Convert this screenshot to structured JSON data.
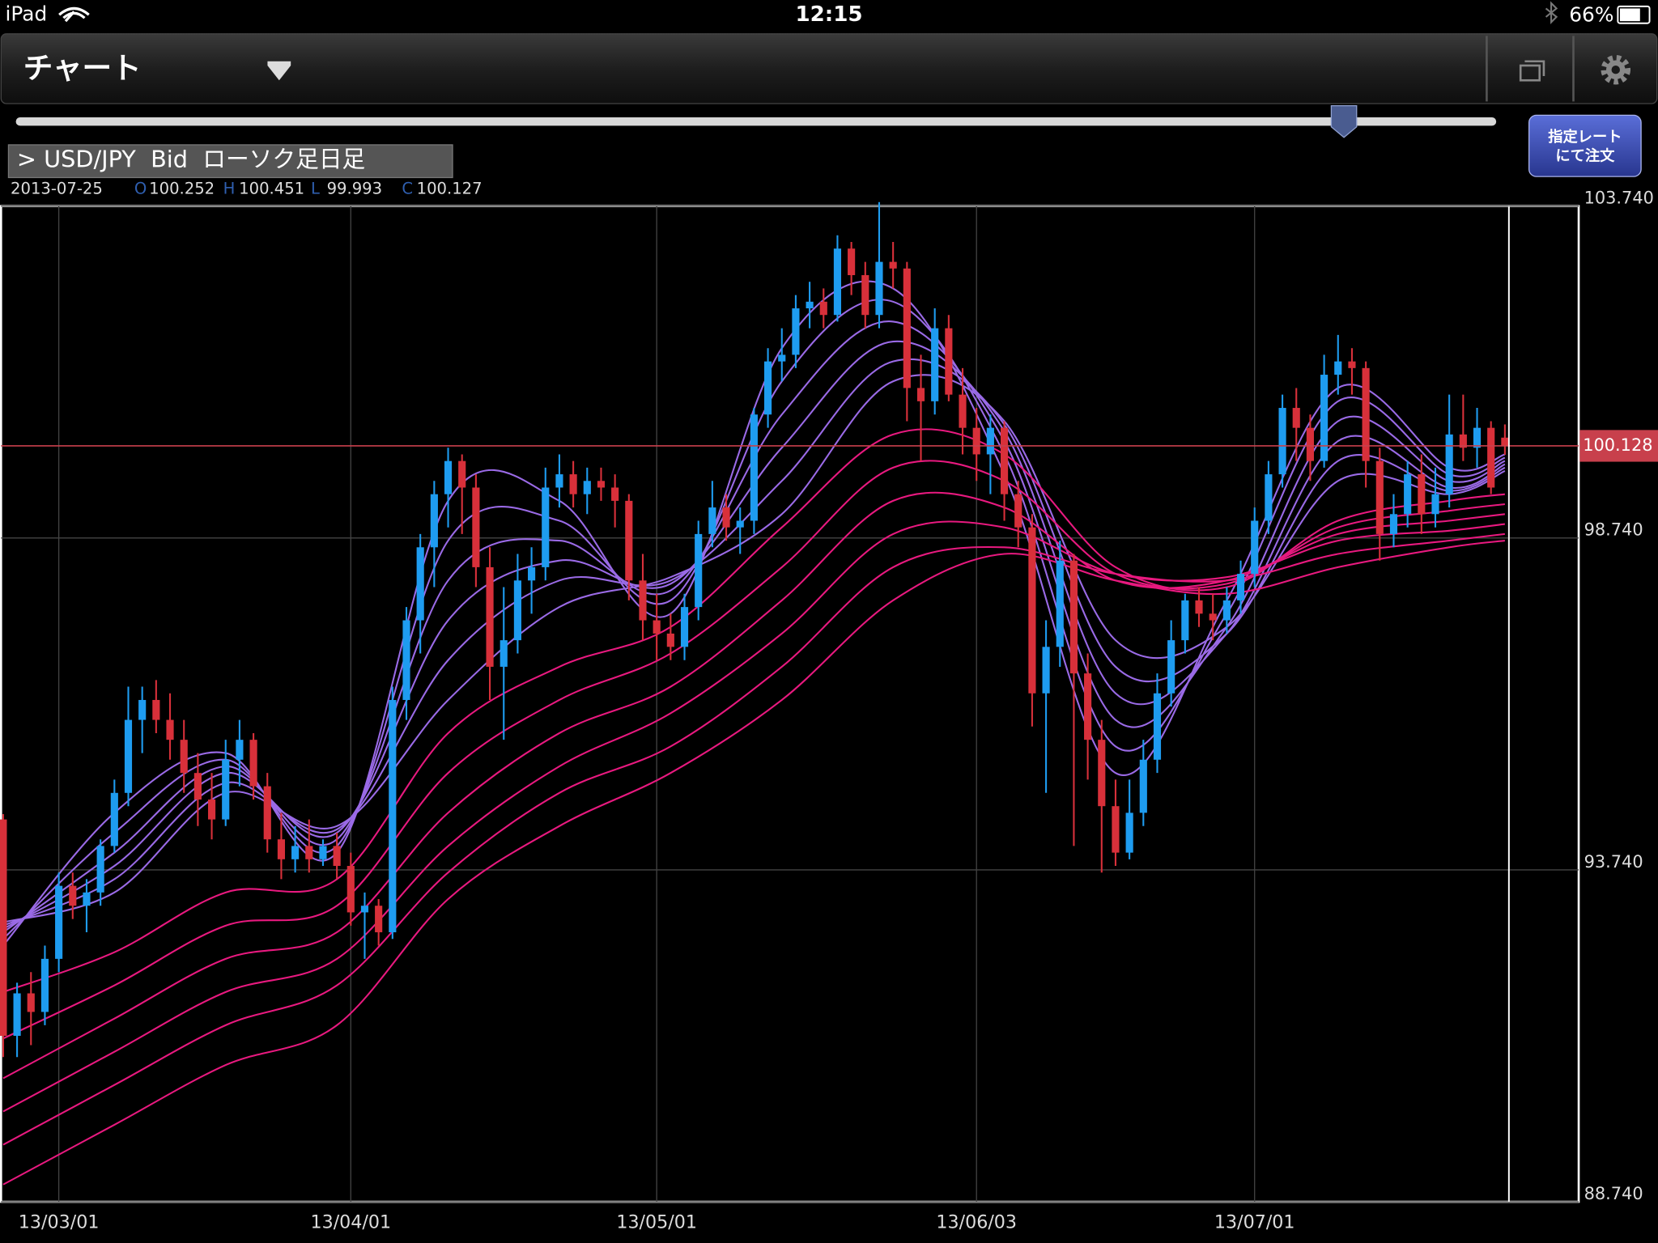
{
  "status_bar": {
    "device": "iPad",
    "time": "12:15",
    "battery": "66%"
  },
  "header": {
    "title": "チャート",
    "order_button": [
      "指定レート",
      "にて注文"
    ]
  },
  "chart_data": {
    "type": "candlestick",
    "title": "> USD/JPY  Bid  ローソク足日足",
    "ohlc_info": {
      "date": "2013-07-25",
      "labels": [
        "O",
        "H",
        "L",
        "C"
      ],
      "values": [
        100.252,
        100.451,
        99.993,
        100.127
      ]
    },
    "up_color": "#1e9cf0",
    "down_color": "#d8303a",
    "open": [
      94.5,
      91.24,
      91.88,
      91.6,
      92.4,
      93.5,
      93.2,
      93.4,
      94.1,
      94.9,
      96.0,
      96.3,
      96.0,
      95.7,
      95.2,
      94.8,
      94.5,
      95.4,
      95.7,
      95.0,
      94.2,
      93.9,
      94.1,
      93.9,
      94.1,
      93.8,
      93.1,
      93.2,
      92.8,
      96.3,
      97.5,
      98.6,
      99.4,
      99.9,
      99.5,
      98.3,
      96.8,
      97.2,
      98.1,
      98.3,
      99.5,
      99.7,
      99.4,
      99.6,
      99.5,
      99.3,
      98.1,
      97.5,
      97.3,
      97.1,
      97.7,
      98.8,
      99.2,
      98.9,
      99.0,
      100.6,
      101.4,
      101.5,
      102.2,
      102.3,
      102.1,
      103.1,
      102.7,
      102.1,
      102.9,
      102.8,
      101.0,
      100.8,
      101.9,
      100.9,
      100.4,
      100.0,
      100.4,
      99.4,
      98.9,
      96.4,
      97.1,
      98.4,
      96.7,
      95.7,
      94.7,
      94.0,
      94.6,
      95.4,
      96.4,
      97.2,
      97.8,
      97.6,
      97.5,
      97.8,
      98.2,
      99.0,
      99.7,
      100.7,
      100.4,
      99.9,
      101.2,
      101.4,
      101.3,
      99.9,
      98.8,
      99.1,
      99.7,
      99.1,
      99.4,
      100.3,
      100.1,
      100.4,
      100.252
    ],
    "high": [
      94.58,
      92.04,
      92.2,
      92.6,
      93.7,
      93.7,
      93.6,
      94.2,
      95.1,
      96.5,
      96.5,
      96.6,
      96.4,
      96.0,
      95.5,
      95.2,
      95.7,
      96.0,
      95.8,
      95.2,
      94.6,
      94.4,
      94.5,
      94.2,
      94.3,
      94.0,
      93.4,
      93.3,
      96.5,
      97.7,
      98.8,
      99.6,
      100.1,
      100.0,
      99.7,
      98.6,
      98.0,
      98.5,
      98.6,
      99.8,
      100.0,
      99.9,
      99.8,
      99.8,
      99.7,
      99.4,
      98.5,
      97.9,
      97.6,
      97.9,
      99.0,
      99.6,
      99.4,
      99.2,
      100.7,
      101.6,
      101.9,
      102.4,
      102.6,
      102.5,
      103.3,
      103.2,
      102.9,
      103.8,
      103.2,
      102.9,
      101.5,
      102.2,
      102.1,
      101.3,
      100.7,
      100.6,
      100.5,
      99.6,
      99.1,
      97.5,
      98.7,
      98.5,
      97.0,
      96.0,
      95.1,
      95.1,
      95.7,
      96.7,
      97.5,
      97.9,
      98.0,
      97.9,
      98.0,
      98.4,
      99.2,
      99.9,
      100.9,
      101.0,
      100.6,
      101.5,
      101.8,
      101.6,
      101.4,
      100.1,
      99.4,
      99.9,
      100.0,
      99.8,
      100.9,
      100.9,
      100.7,
      100.5,
      100.451
    ],
    "low": [
      90.92,
      90.92,
      91.1,
      91.4,
      92.2,
      93.0,
      92.8,
      93.2,
      94.0,
      94.7,
      95.5,
      95.8,
      95.4,
      94.9,
      94.4,
      94.2,
      94.4,
      95.0,
      94.8,
      94.0,
      93.6,
      93.7,
      93.7,
      93.8,
      93.6,
      92.9,
      92.4,
      92.6,
      92.7,
      96.0,
      97.0,
      98.0,
      98.9,
      98.8,
      98.0,
      96.3,
      95.7,
      97.0,
      97.6,
      98.1,
      99.2,
      99.2,
      99.1,
      99.3,
      98.9,
      97.8,
      97.2,
      96.9,
      96.9,
      96.9,
      97.5,
      98.6,
      98.7,
      98.5,
      98.8,
      100.4,
      101.1,
      101.3,
      101.9,
      101.9,
      102.0,
      102.4,
      101.9,
      101.9,
      102.5,
      100.5,
      99.9,
      100.6,
      100.8,
      100.0,
      99.6,
      99.4,
      99.0,
      98.6,
      95.9,
      94.9,
      96.8,
      94.1,
      95.1,
      93.7,
      93.8,
      93.9,
      94.4,
      95.2,
      96.2,
      97.0,
      97.4,
      97.2,
      97.3,
      97.6,
      98.0,
      98.8,
      99.5,
      99.9,
      99.6,
      99.8,
      100.9,
      100.9,
      99.5,
      98.4,
      98.6,
      98.9,
      98.8,
      98.9,
      99.2,
      99.9,
      99.8,
      99.4,
      99.993
    ],
    "close": [
      91.24,
      91.88,
      91.6,
      92.4,
      93.5,
      93.2,
      93.4,
      94.1,
      94.9,
      96.0,
      96.3,
      96.0,
      95.7,
      95.2,
      94.8,
      94.5,
      95.4,
      95.7,
      95.0,
      94.2,
      93.9,
      94.1,
      93.9,
      94.1,
      93.8,
      93.1,
      93.2,
      92.8,
      96.3,
      97.5,
      98.6,
      99.4,
      99.9,
      99.5,
      98.3,
      96.8,
      97.2,
      98.1,
      98.3,
      99.5,
      99.7,
      99.4,
      99.6,
      99.5,
      99.3,
      98.1,
      97.5,
      97.3,
      97.1,
      97.7,
      98.8,
      99.2,
      98.9,
      99.0,
      100.6,
      101.4,
      101.5,
      102.2,
      102.3,
      102.1,
      103.1,
      102.7,
      102.1,
      102.9,
      102.8,
      101.0,
      100.8,
      101.9,
      100.9,
      100.4,
      100.0,
      100.4,
      99.4,
      98.9,
      96.4,
      97.1,
      98.4,
      96.7,
      95.7,
      94.7,
      94.0,
      94.6,
      95.4,
      96.4,
      97.2,
      97.8,
      97.6,
      97.5,
      97.8,
      98.2,
      99.0,
      99.7,
      100.7,
      100.4,
      99.9,
      101.2,
      101.4,
      101.3,
      99.9,
      98.8,
      99.1,
      99.7,
      99.1,
      99.4,
      100.3,
      100.1,
      100.4,
      99.5,
      100.127
    ],
    "xticks": [
      {
        "value": 4,
        "label": "13/03/01"
      },
      {
        "value": 25,
        "label": "13/04/01"
      },
      {
        "value": 47,
        "label": "13/05/01"
      },
      {
        "value": 70,
        "label": "13/06/03"
      },
      {
        "value": 90,
        "label": "13/07/01"
      }
    ],
    "ylim": [
      88.74,
      103.74
    ],
    "yticks": [
      {
        "value": 103.74,
        "label": "103.740"
      },
      {
        "value": 98.74,
        "label": "98.740"
      },
      {
        "value": 93.74,
        "label": "93.740"
      },
      {
        "value": 88.74,
        "label": "88.740"
      }
    ],
    "grid": true,
    "current_price": 100.128,
    "current_price_color": "#c8404c",
    "ma_x": [
      0,
      8,
      16,
      24,
      32,
      40,
      48,
      56,
      64,
      72,
      80,
      88,
      96,
      104,
      108
    ],
    "series": [
      {
        "color": "#9a6ae6",
        "values": [
          92.6,
          94.6,
          95.5,
          94.0,
          99.3,
          99.3,
          97.6,
          101.6,
          102.5,
          99.7,
          95.2,
          97.8,
          101.0,
          99.8,
          100.0
        ]
      },
      {
        "color": "#9a6ae6",
        "values": [
          92.7,
          94.3,
          95.4,
          94.1,
          98.7,
          99.0,
          97.8,
          101.1,
          102.3,
          100.0,
          95.6,
          97.6,
          100.8,
          99.7,
          99.95
        ]
      },
      {
        "color": "#9a6ae6",
        "values": [
          92.8,
          94.0,
          95.3,
          94.2,
          98.1,
          98.7,
          97.95,
          100.6,
          102.0,
          100.2,
          96.0,
          97.4,
          100.5,
          99.6,
          99.9
        ]
      },
      {
        "color": "#9a6ae6",
        "values": [
          92.85,
          93.8,
          95.2,
          94.3,
          97.5,
          98.4,
          98.05,
          100.1,
          101.7,
          100.35,
          96.4,
          97.3,
          100.2,
          99.5,
          99.85
        ]
      },
      {
        "color": "#9a6ae6",
        "values": [
          92.9,
          93.6,
          95.05,
          94.35,
          96.9,
          98.1,
          98.1,
          99.6,
          101.4,
          100.45,
          96.8,
          97.3,
          99.9,
          99.45,
          99.8
        ]
      },
      {
        "color": "#9a6ae6",
        "values": [
          92.95,
          93.4,
          94.9,
          94.4,
          96.3,
          97.7,
          98.15,
          99.1,
          101.1,
          100.5,
          97.2,
          97.4,
          99.6,
          99.4,
          99.75
        ]
      },
      {
        "color": "#e8197f",
        "values": [
          91.9,
          92.5,
          93.4,
          93.6,
          95.8,
          96.8,
          97.4,
          98.9,
          100.3,
          100.0,
          98.3,
          98.0,
          99.0,
          99.3,
          99.4
        ]
      },
      {
        "color": "#e8197f",
        "values": [
          91.2,
          92.0,
          92.9,
          93.2,
          95.2,
          96.3,
          97.0,
          98.3,
          99.8,
          99.6,
          98.2,
          98.05,
          98.9,
          99.15,
          99.25
        ]
      },
      {
        "color": "#e8197f",
        "values": [
          90.6,
          91.5,
          92.4,
          92.8,
          94.6,
          95.8,
          96.5,
          97.8,
          99.3,
          99.2,
          98.1,
          98.1,
          98.8,
          99.0,
          99.1
        ]
      },
      {
        "color": "#e8197f",
        "values": [
          90.1,
          91.0,
          91.9,
          92.4,
          94.1,
          95.3,
          96.1,
          97.3,
          98.8,
          98.9,
          98.2,
          98.15,
          98.7,
          98.85,
          98.95
        ]
      },
      {
        "color": "#e8197f",
        "values": [
          89.6,
          90.5,
          91.4,
          92.0,
          93.7,
          94.9,
          95.6,
          96.8,
          98.3,
          98.6,
          98.2,
          98.1,
          98.5,
          98.7,
          98.8
        ]
      },
      {
        "color": "#e8197f",
        "values": [
          89.0,
          89.9,
          90.8,
          91.4,
          93.3,
          94.4,
          95.2,
          96.3,
          97.8,
          98.5,
          98.1,
          97.9,
          98.3,
          98.6,
          98.7
        ]
      }
    ]
  }
}
